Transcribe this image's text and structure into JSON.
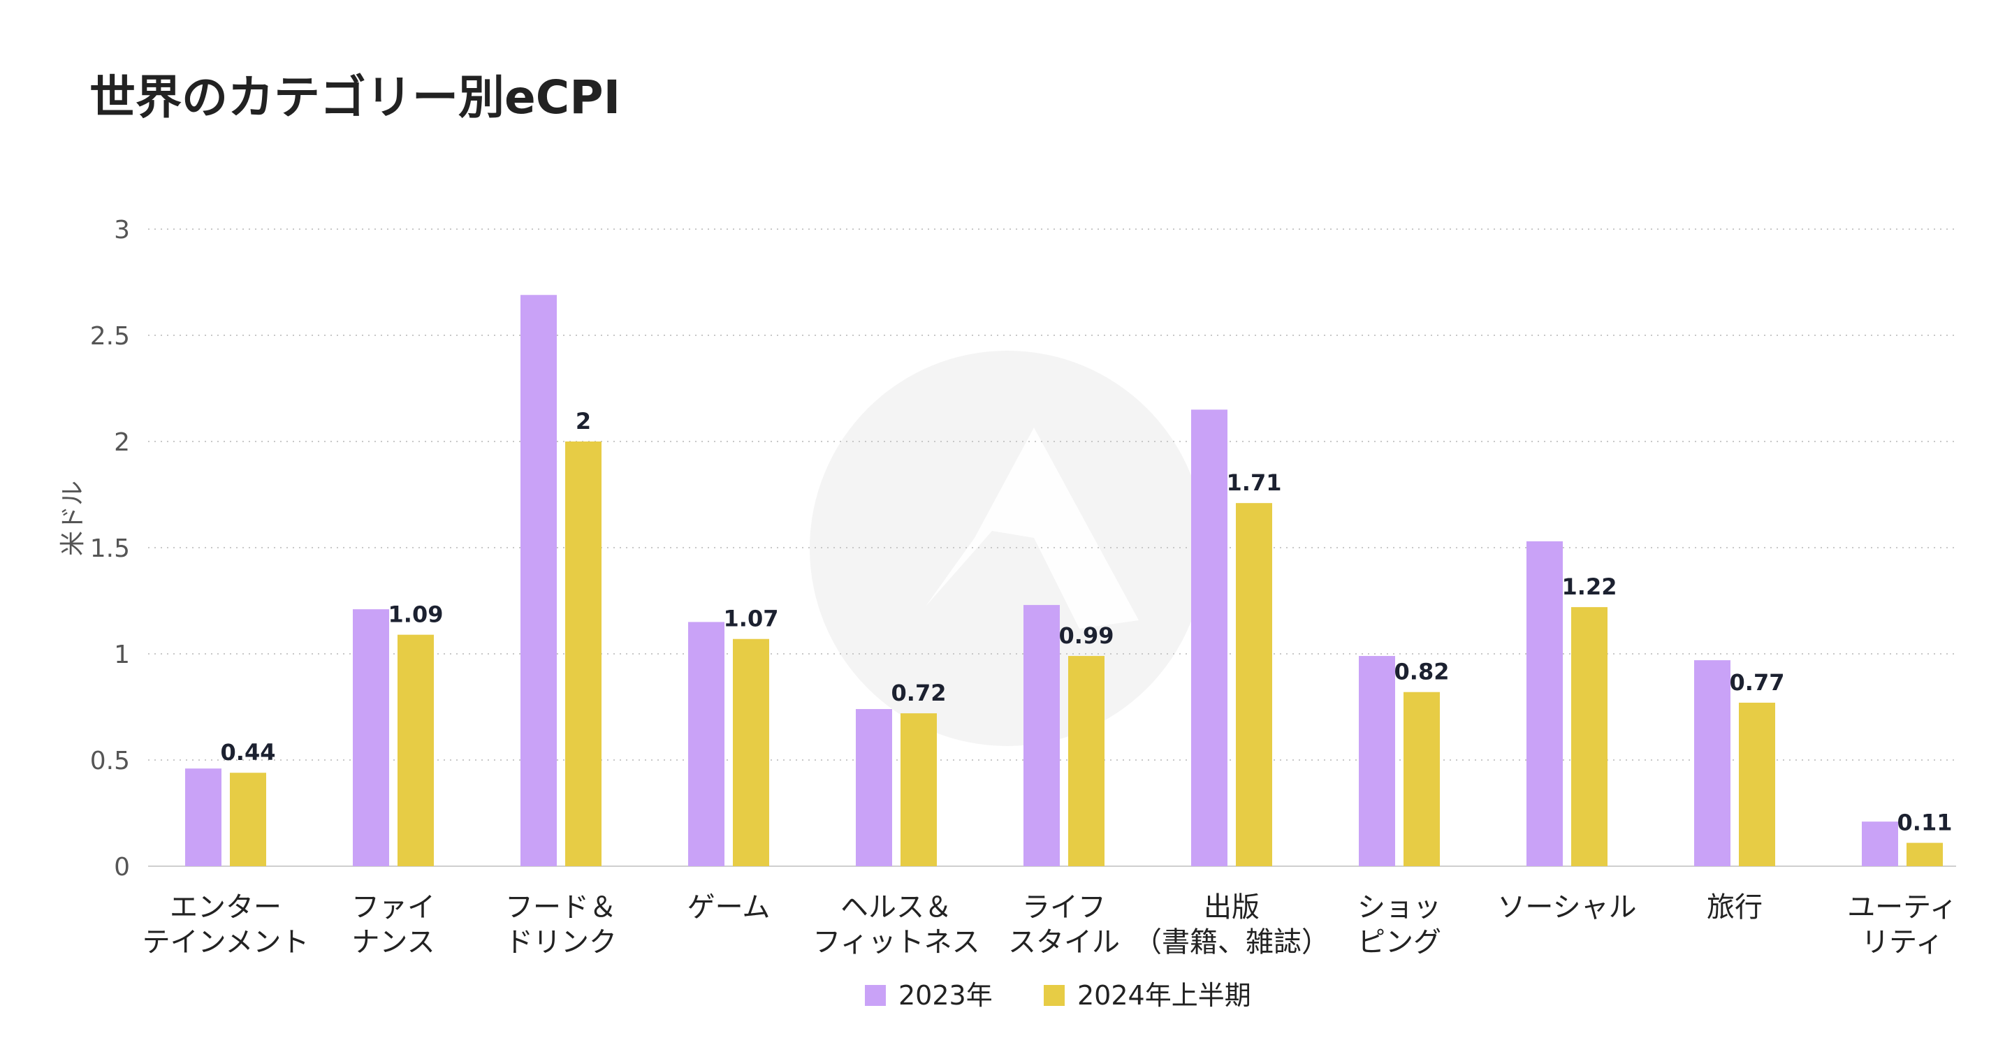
{
  "chart_data": {
    "type": "bar",
    "title": "世界のカテゴリー別eCPI",
    "ylabel": "米ドル",
    "xlabel": "",
    "ylim": [
      0,
      3
    ],
    "yticks": [
      "0",
      "0.5",
      "1",
      "1.5",
      "2",
      "2.5",
      "3"
    ],
    "grid": true,
    "legend_position": "bottom-center",
    "categories": [
      [
        "エンター",
        "テインメント"
      ],
      [
        "ファイ",
        "ナンス"
      ],
      [
        "フード＆",
        "ドリンク"
      ],
      [
        "ゲーム"
      ],
      [
        "ヘルス＆",
        "フィットネス"
      ],
      [
        "ライフ",
        "スタイル"
      ],
      [
        "出版",
        "（書籍、雑誌）"
      ],
      [
        "ショッ",
        "ピング"
      ],
      [
        "ソーシャル"
      ],
      [
        "旅行"
      ],
      [
        "ユーティ",
        "リティ"
      ]
    ],
    "series": [
      {
        "name": "2023年",
        "color": "#c9a2f7",
        "values": [
          0.46,
          1.21,
          2.69,
          1.15,
          0.74,
          1.23,
          2.15,
          0.99,
          1.53,
          0.97,
          0.21
        ],
        "labels": [
          "",
          "",
          "",
          "",
          "",
          "",
          "",
          "",
          "",
          "",
          ""
        ]
      },
      {
        "name": "2024年上半期",
        "color": "#e7cc45",
        "values": [
          0.44,
          1.09,
          2,
          1.07,
          0.72,
          0.99,
          1.71,
          0.82,
          1.22,
          0.77,
          0.11
        ],
        "labels": [
          "0.44",
          "1.09",
          "2",
          "1.07",
          "0.72",
          "0.99",
          "1.71",
          "0.82",
          "1.22",
          "0.77",
          "0.11"
        ]
      }
    ]
  },
  "colors": {
    "grid": "#c8c8c8",
    "axis": "#cfcfcf",
    "text": "#222222",
    "tick_text": "#555555",
    "label_text": "#1c2130",
    "watermark": "#f4f4f4"
  },
  "watermark_icon": "applovin-logo-icon"
}
